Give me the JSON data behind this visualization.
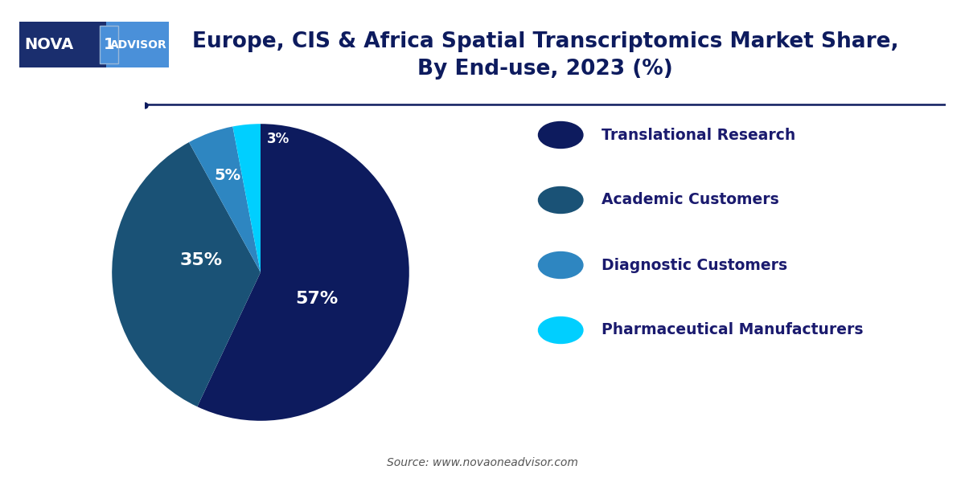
{
  "title": "Europe, CIS & Africa Spatial Transcriptomics Market Share,\nBy End-use, 2023 (%)",
  "slices": [
    57,
    35,
    5,
    3
  ],
  "labels": [
    "57%",
    "35%",
    "5%",
    "3%"
  ],
  "colors": [
    "#0d1b5e",
    "#1a5276",
    "#2e86c1",
    "#00cfff"
  ],
  "legend_labels": [
    "Translational Research",
    "Academic Customers",
    "Diagnostic Customers",
    "Pharmaceutical Manufacturers"
  ],
  "source_text": "Source: www.novaoneadvisor.com",
  "startangle": 90,
  "background_color": "#ffffff",
  "title_color": "#0d1b5e",
  "legend_text_color": "#1a1a6e",
  "divider_color": "#0d1b5e",
  "logo_left_color": "#1a2e6e",
  "logo_right_color": "#4a90d9",
  "logo_accent_border": "#9ab8d8"
}
